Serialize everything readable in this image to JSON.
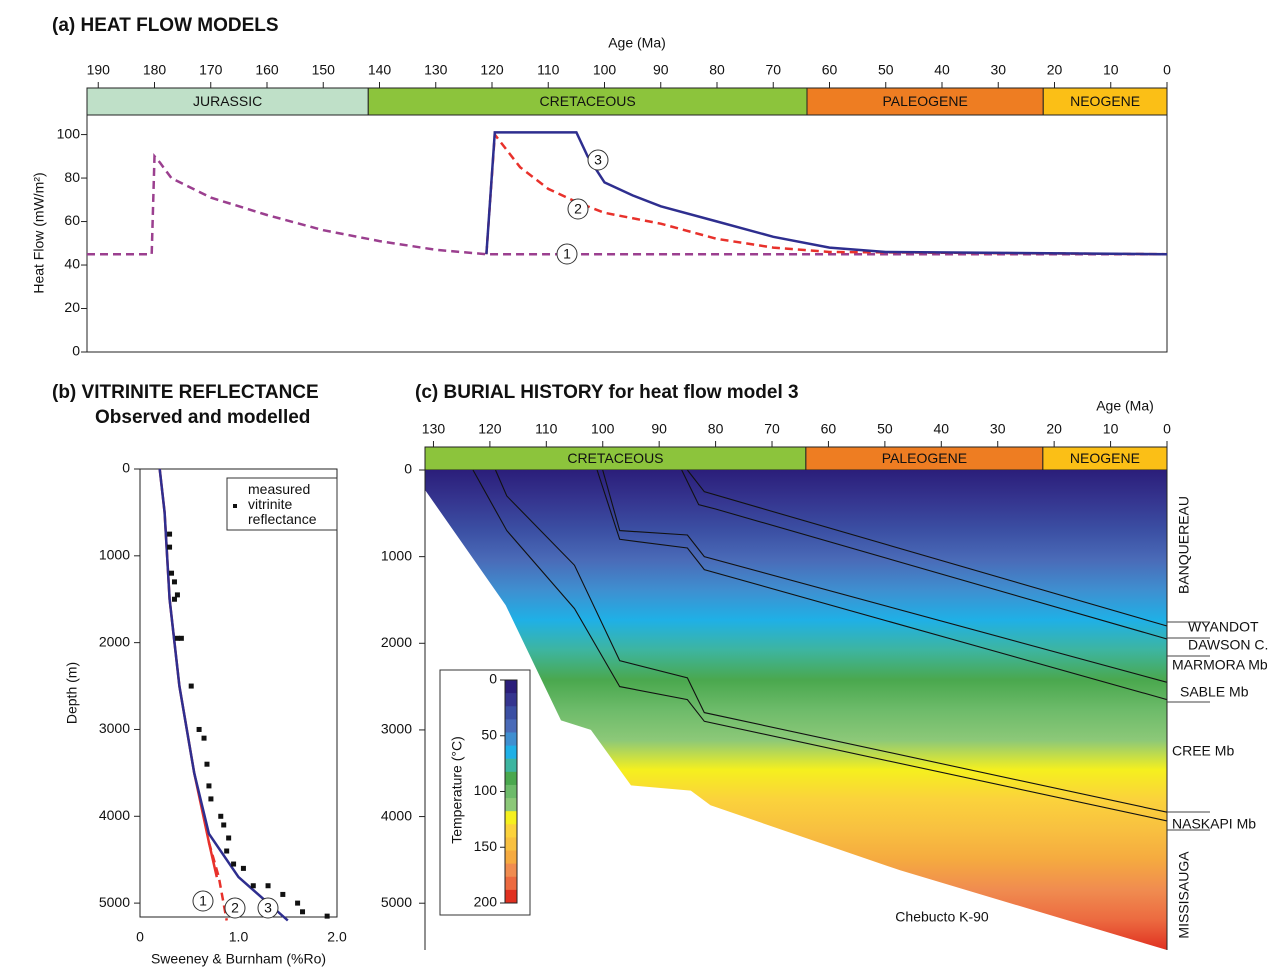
{
  "chart_data": [
    {
      "type": "heatflow",
      "title": "(a) HEAT FLOW MODELS",
      "x_label": "Age (Ma)",
      "y_label": "Heat Flow (mW/m²)",
      "xlim": [
        192,
        0
      ],
      "xticks": [
        190,
        180,
        170,
        160,
        150,
        140,
        130,
        120,
        110,
        100,
        90,
        80,
        70,
        60,
        50,
        40,
        30,
        20,
        10,
        0
      ],
      "ylim": [
        0,
        109
      ],
      "yticks": [
        0,
        20,
        40,
        60,
        80,
        100
      ],
      "periods": [
        {
          "name": "JURASSIC",
          "range": [
            192,
            142
          ],
          "color": "#bfe0c8"
        },
        {
          "name": "CRETACEOUS",
          "range": [
            142,
            64
          ],
          "color": "#8cc43c"
        },
        {
          "name": "PALEOGENE",
          "range": [
            64,
            22
          ],
          "color": "#ee7d22"
        },
        {
          "name": "NEOGENE",
          "range": [
            22,
            0
          ],
          "color": "#fbbf16"
        }
      ],
      "series": [
        {
          "name": "1",
          "color": "#9b3f8f",
          "dash": true,
          "x": [
            192,
            180.5,
            180,
            179,
            177,
            170,
            160,
            150,
            140,
            130,
            121,
            0
          ],
          "values": [
            45,
            45,
            90,
            87,
            80,
            71,
            63,
            56,
            51,
            47,
            45,
            45
          ]
        },
        {
          "name": "2",
          "color": "#e8312b",
          "dash": true,
          "x": [
            121,
            119.5,
            115,
            110,
            105,
            100,
            90,
            80,
            70,
            60,
            0
          ],
          "values": [
            45,
            100,
            85,
            75,
            69,
            64,
            59,
            52,
            48,
            46,
            45
          ]
        },
        {
          "name": "3",
          "color": "#2e2e8f",
          "dash": false,
          "x": [
            121,
            119.5,
            105,
            103,
            100,
            95,
            90,
            80,
            70,
            60,
            50,
            0
          ],
          "values": [
            45,
            101,
            101,
            90,
            78,
            72,
            67,
            60,
            53,
            48,
            46,
            45
          ]
        }
      ]
    },
    {
      "type": "profile",
      "title": "(b) VITRINITE REFLECTANCE",
      "subtitle": "Observed and modelled",
      "x_label": "Sweeney & Burnham (%Ro)",
      "y_label": "Depth (m)",
      "xlim": [
        0,
        2.0
      ],
      "xticks": [
        0,
        {
          "value": 1,
          "label": "1.0"
        },
        {
          "value": 2,
          "label": "2.0"
        }
      ],
      "ylim": [
        0,
        5160
      ],
      "yticks": [
        0,
        1000,
        2000,
        3000,
        4000,
        5000
      ],
      "legend": "measured vitrinite reflectance",
      "series": [
        {
          "name": "1",
          "color": "#e8312b",
          "dash": false,
          "x": [
            0.2,
            0.25,
            0.3,
            0.4,
            0.55,
            0.7,
            0.78
          ],
          "values": [
            0,
            500,
            1500,
            2500,
            3500,
            4300,
            4700
          ]
        },
        {
          "name": "2",
          "color": "#e8312b",
          "dash": true,
          "x": [
            0.7,
            0.8,
            0.88
          ],
          "values": [
            4300,
            4700,
            5200
          ]
        },
        {
          "name": "3",
          "color": "#2e2e8f",
          "dash": false,
          "x": [
            0.2,
            0.25,
            0.3,
            0.4,
            0.55,
            0.7,
            1.0,
            1.3,
            1.5
          ],
          "values": [
            0,
            500,
            1500,
            2500,
            3500,
            4200,
            4700,
            5000,
            5200
          ]
        }
      ],
      "measured": {
        "x": [
          0.3,
          0.3,
          0.32,
          0.35,
          0.35,
          0.38,
          0.38,
          0.42,
          0.52,
          0.6,
          0.65,
          0.68,
          0.7,
          0.72,
          0.82,
          0.85,
          0.9,
          0.88,
          0.95,
          1.05,
          1.15,
          1.3,
          1.45,
          1.6,
          1.65,
          1.9
        ],
        "values": [
          750,
          900,
          1200,
          1300,
          1500,
          1450,
          1950,
          1950,
          2500,
          3000,
          3100,
          3400,
          3650,
          3800,
          4000,
          4100,
          4250,
          4400,
          4550,
          4600,
          4800,
          4800,
          4900,
          5000,
          5100,
          5150
        ]
      }
    },
    {
      "type": "burial",
      "title": "(c) BURIAL HISTORY for heat flow model 3",
      "x_label": "Age (Ma)",
      "well": "Chebucto K-90",
      "xlim": [
        131.5,
        0
      ],
      "xticks": [
        130,
        120,
        110,
        100,
        90,
        80,
        70,
        60,
        50,
        40,
        30,
        20,
        10,
        0
      ],
      "ylim": [
        0,
        5540
      ],
      "yticks": [
        0,
        1000,
        2000,
        3000,
        4000,
        5000
      ],
      "periods": [
        {
          "name": "CRETACEOUS",
          "range": [
            131.5,
            64
          ],
          "color": "#8cc43c"
        },
        {
          "name": "PALEOGENE",
          "range": [
            64,
            22
          ],
          "color": "#ee7d22"
        },
        {
          "name": "NEOGENE",
          "range": [
            22,
            0
          ],
          "color": "#fbbf16"
        }
      ],
      "basement": {
        "x": [
          131.5,
          117.2,
          107.4,
          102.1,
          95,
          84.4,
          80.9,
          47.3,
          0
        ],
        "values": [
          230,
          1560,
          2890,
          3000,
          3640,
          3700,
          3870,
          4620,
          5540
        ]
      },
      "horizons": [
        {
          "x": [
            85,
            82,
            0
          ],
          "values": [
            0,
            250,
            1800
          ]
        },
        {
          "x": [
            86,
            83,
            80,
            0
          ],
          "values": [
            0,
            400,
            450,
            1950
          ]
        },
        {
          "x": [
            100,
            97,
            85,
            82,
            0
          ],
          "values": [
            0,
            700,
            750,
            1000,
            2450
          ]
        },
        {
          "x": [
            101,
            97,
            85,
            82,
            0
          ],
          "values": [
            0,
            800,
            900,
            1150,
            2650
          ]
        },
        {
          "x": [
            119,
            117,
            105,
            97,
            85,
            82,
            0
          ],
          "values": [
            0,
            300,
            1100,
            2200,
            2400,
            2800,
            3950
          ]
        },
        {
          "x": [
            123,
            117,
            105,
            97,
            85,
            82,
            0
          ],
          "values": [
            0,
            700,
            1600,
            2500,
            2650,
            2900,
            4050
          ]
        }
      ],
      "formations": [
        "BANQUEREAU",
        "WYANDOT",
        "DAWSON C.",
        "MARMORA Mb",
        "SABLE Mb",
        "CREE Mb",
        "NASKAPI Mb",
        "MISSISAUGA"
      ],
      "colorbar": {
        "label": "Temperature (°C)",
        "lim": [
          0,
          200
        ],
        "ticks": [
          0,
          50,
          100,
          150,
          200
        ],
        "colors": [
          "#2b1e7a",
          "#35358f",
          "#3b4fa3",
          "#4a6bb8",
          "#3f8fd0",
          "#1fb0e6",
          "#3db5a0",
          "#4aa84e",
          "#6dbb6a",
          "#8cc878",
          "#f5f01e",
          "#fbd23c",
          "#f8c040",
          "#f5aa40",
          "#f08c50",
          "#ec6a40",
          "#e03020"
        ]
      }
    }
  ]
}
